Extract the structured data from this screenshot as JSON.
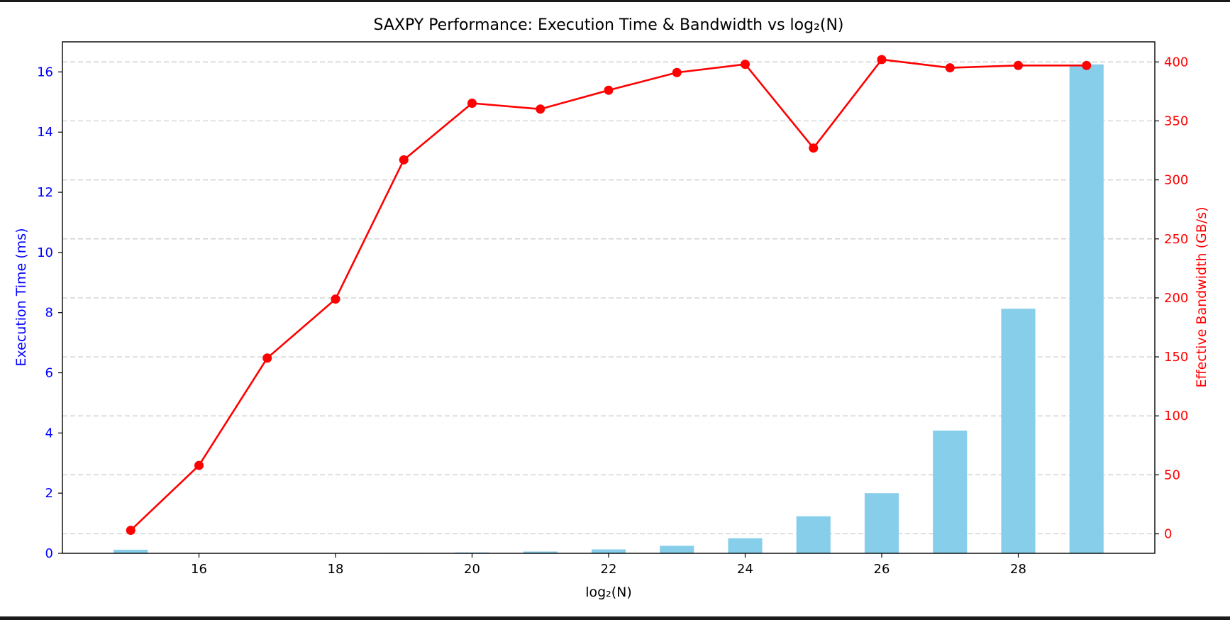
{
  "chart_data": {
    "type": "bar",
    "title": "SAXPY Performance: Execution Time & Bandwidth vs log₂(N)",
    "xlabel": "log₂(N)",
    "ylabel": "Execution Time (ms)",
    "y2label": "Effective Bandwidth (GB/s)",
    "x": [
      15,
      16,
      17,
      18,
      19,
      20,
      21,
      22,
      23,
      24,
      25,
      26,
      27,
      28,
      29
    ],
    "xlim": [
      14.0,
      30.0
    ],
    "xticks": [
      16,
      18,
      20,
      22,
      24,
      26,
      28
    ],
    "ylim": [
      0,
      17
    ],
    "yticks": [
      0,
      2,
      4,
      6,
      8,
      10,
      12,
      14,
      16
    ],
    "y2lim": [
      -16.5,
      417
    ],
    "y2ticks": [
      0,
      50,
      100,
      150,
      200,
      250,
      300,
      350,
      400
    ],
    "grid": "horizontal dashed, right axis",
    "series": [
      {
        "name": "Execution Time (ms)",
        "type": "bar",
        "axis": "left",
        "color": "#87ceeb",
        "values": [
          0.12,
          0.01,
          0.01,
          0.01,
          0.015,
          0.03,
          0.06,
          0.13,
          0.25,
          0.5,
          1.23,
          2.0,
          4.08,
          8.13,
          16.25
        ]
      },
      {
        "name": "Effective Bandwidth (GB/s)",
        "type": "line",
        "axis": "right",
        "color": "#ff0000",
        "values": [
          3,
          58,
          149,
          199,
          317,
          365,
          360,
          376,
          391,
          398,
          327,
          402,
          395,
          397,
          397
        ]
      }
    ],
    "colors": {
      "left_axis": "#0000ff",
      "right_axis": "#ff0000",
      "bar": "#87ceeb",
      "line": "#ff0000",
      "grid": "#c8c8c8"
    }
  }
}
